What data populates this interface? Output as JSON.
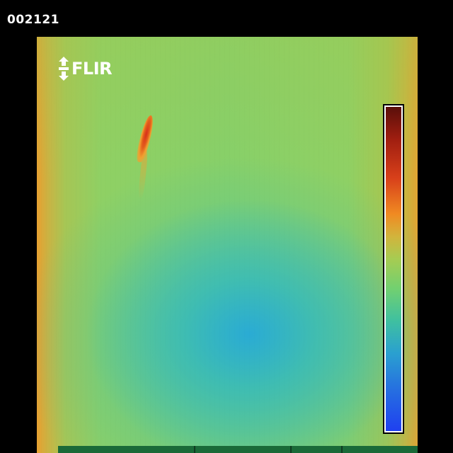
{
  "frame_counter": "002121",
  "logo": {
    "text": "FLIR",
    "icon": "flir-emblem-icon"
  },
  "color_scale": {
    "palette": "rainbow",
    "top_color": "#5a0f0a",
    "bottom_color": "#1f40f0"
  },
  "colors": {
    "background": "#000000",
    "cool": "#2aa0d0",
    "mid": "#86d06a",
    "warm": "#e8a030",
    "hot": "#d8301a"
  }
}
